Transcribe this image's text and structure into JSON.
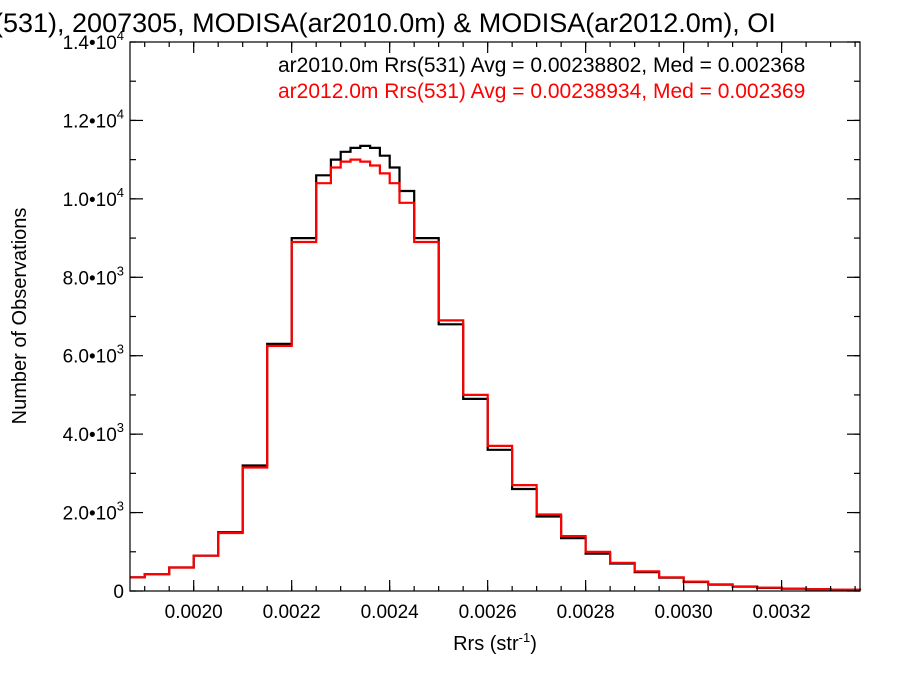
{
  "chart_data": {
    "type": "line",
    "title": "(531), 2007305, MODISA(ar2010.0m) & MODISA(ar2012.0m), OI",
    "xlabel": "Rrs (str",
    "xlabel_sup": "-1",
    "xlabel_end": ")",
    "ylabel": "Number of Observations",
    "xlim": [
      0.00187,
      0.00336
    ],
    "ylim": [
      0,
      14000
    ],
    "grid": false,
    "legend_position": "top-right",
    "x_ticks": [
      {
        "value": 0.002,
        "label": "0.0020"
      },
      {
        "value": 0.0022,
        "label": "0.0022"
      },
      {
        "value": 0.0024,
        "label": "0.0024"
      },
      {
        "value": 0.0026,
        "label": "0.0026"
      },
      {
        "value": 0.0028,
        "label": "0.0028"
      },
      {
        "value": 0.003,
        "label": "0.0030"
      },
      {
        "value": 0.0032,
        "label": "0.0032"
      }
    ],
    "y_ticks": [
      {
        "value": 0,
        "mant": "0",
        "exp": ""
      },
      {
        "value": 2000,
        "mant": "2.0•10",
        "exp": "3"
      },
      {
        "value": 4000,
        "mant": "4.0•10",
        "exp": "3"
      },
      {
        "value": 6000,
        "mant": "6.0•10",
        "exp": "3"
      },
      {
        "value": 8000,
        "mant": "8.0•10",
        "exp": "3"
      },
      {
        "value": 10000,
        "mant": "1.0•10",
        "exp": "4"
      },
      {
        "value": 12000,
        "mant": "1.2•10",
        "exp": "4"
      },
      {
        "value": 14000,
        "mant": "1.4•10",
        "exp": "4"
      }
    ],
    "x_minor_step": 5e-05,
    "y_minor_step": 1000,
    "series": [
      {
        "name": "ar2010.0m Rrs(531) Avg = 0.00238802, Med = 0.002368",
        "color": "#000000",
        "x": [
          0.00187,
          0.0019,
          0.00195,
          0.002,
          0.00205,
          0.0021,
          0.00215,
          0.0022,
          0.00225,
          0.00228,
          0.0023,
          0.00232,
          0.00234,
          0.00236,
          0.00238,
          0.0024,
          0.00242,
          0.00245,
          0.0025,
          0.00255,
          0.0026,
          0.00265,
          0.0027,
          0.00275,
          0.0028,
          0.00285,
          0.0029,
          0.00295,
          0.003,
          0.00305,
          0.0031,
          0.00315,
          0.0032,
          0.00325,
          0.0033,
          0.00336
        ],
        "y": [
          350,
          430,
          600,
          900,
          1500,
          3200,
          6300,
          9000,
          10600,
          11000,
          11200,
          11300,
          11350,
          11300,
          11100,
          10800,
          10200,
          9000,
          6800,
          4900,
          3600,
          2600,
          1900,
          1350,
          950,
          700,
          480,
          340,
          230,
          160,
          110,
          80,
          60,
          45,
          30,
          20
        ]
      },
      {
        "name": "ar2012.0m Rrs(531) Avg = 0.00238934, Med = 0.002369",
        "color": "#ff0000",
        "x": [
          0.00187,
          0.0019,
          0.00195,
          0.002,
          0.00205,
          0.0021,
          0.00215,
          0.0022,
          0.00225,
          0.00228,
          0.0023,
          0.00232,
          0.00234,
          0.00236,
          0.00238,
          0.0024,
          0.00242,
          0.00245,
          0.0025,
          0.00255,
          0.0026,
          0.00265,
          0.0027,
          0.00275,
          0.0028,
          0.00285,
          0.0029,
          0.00295,
          0.003,
          0.00305,
          0.0031,
          0.00315,
          0.0032,
          0.00325,
          0.0033,
          0.00336
        ],
        "y": [
          350,
          430,
          600,
          900,
          1480,
          3150,
          6250,
          8900,
          10400,
          10800,
          10950,
          11000,
          10950,
          10850,
          10650,
          10400,
          9900,
          8900,
          6900,
          5000,
          3700,
          2700,
          1950,
          1400,
          1000,
          720,
          500,
          350,
          240,
          170,
          115,
          85,
          62,
          46,
          32,
          22
        ]
      }
    ]
  }
}
